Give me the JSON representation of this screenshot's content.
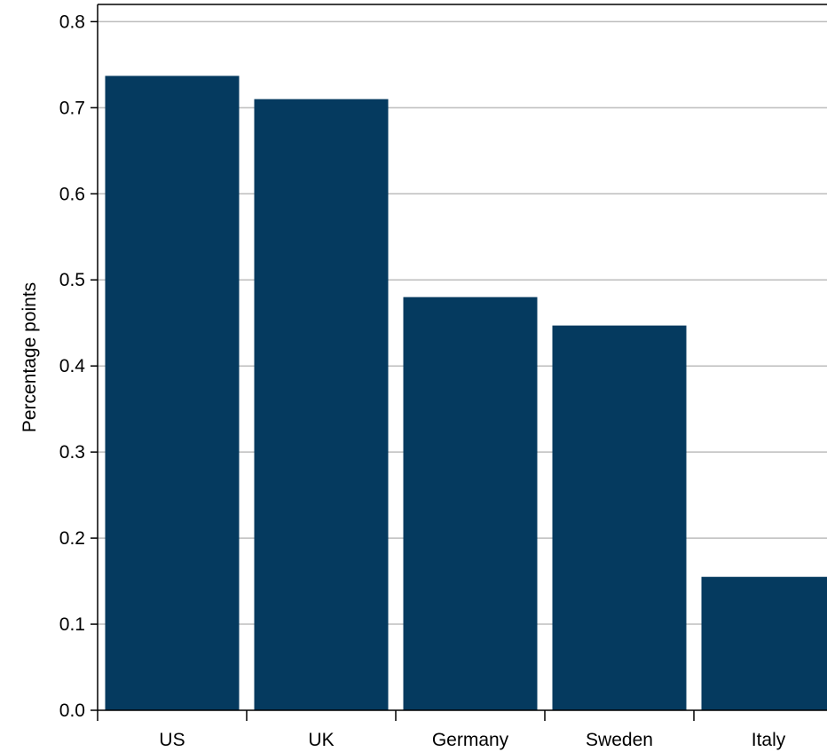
{
  "chart_data": {
    "type": "bar",
    "categories": [
      "US",
      "UK",
      "Germany",
      "Sweden",
      "Italy"
    ],
    "values": [
      0.737,
      0.71,
      0.48,
      0.447,
      0.155
    ],
    "ylabel": "Percentage points",
    "xlabel": "",
    "ylim": [
      0,
      0.82
    ],
    "yticks": [
      0.0,
      0.1,
      0.2,
      0.3,
      0.4,
      0.5,
      0.6,
      0.7,
      0.8
    ],
    "ytick_labels": [
      "0.0",
      "0.1",
      "0.2",
      "0.3",
      "0.4",
      "0.5",
      "0.6",
      "0.7",
      "0.8"
    ],
    "grid": true,
    "legend": "none",
    "bar_color": "#053a5f",
    "grid_color": "#bdbdbd"
  }
}
